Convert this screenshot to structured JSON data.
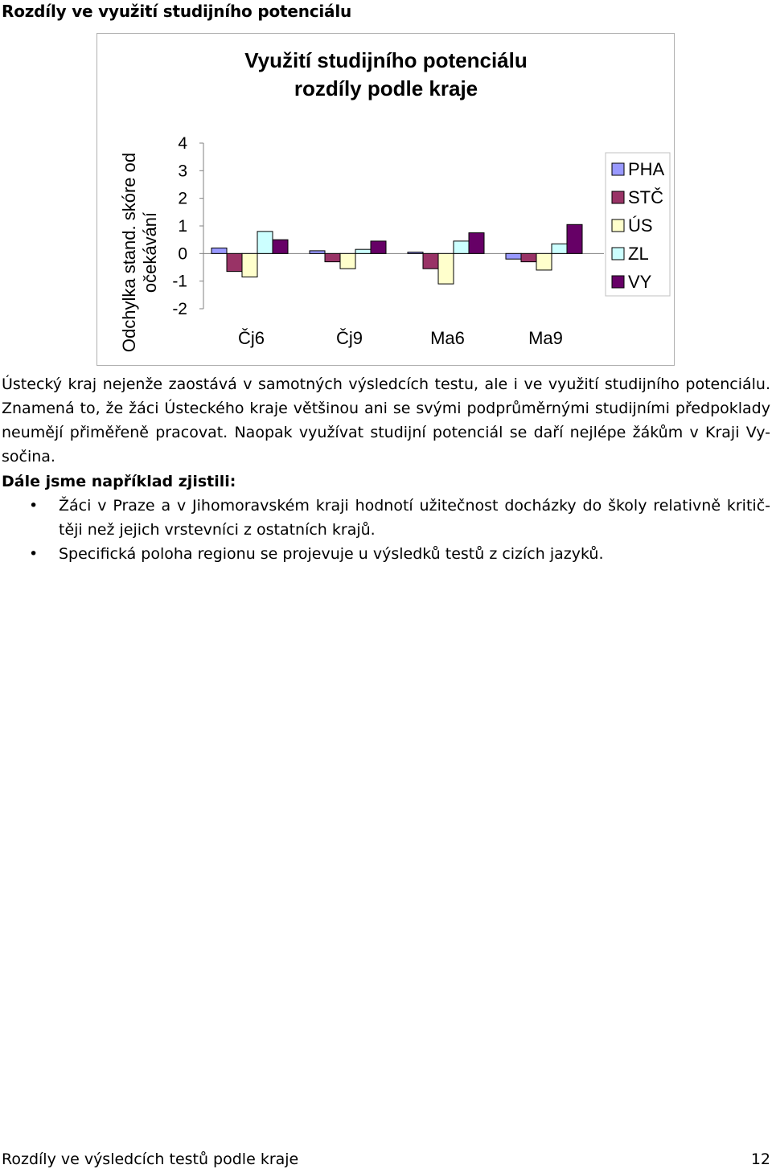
{
  "document": {
    "section_title": "Rozdíly ve využití studijního potenciálu",
    "paragraph_lines": [
      "Ústecký kraj nejenže zaostává v samotných výsledcích testu, ale i ve využití studijního potenciálu.",
      "Znamená to, že žáci Ústeckého kraje většinou ani se svými podprůměrnými studijními předpoklady",
      "neumějí přiměřeně pracovat. Naopak využívat studijní potenciál se daří nejlépe žákům v Kraji Vy-",
      "sočina."
    ],
    "subheading": "Dále jsme například zjistili:",
    "bullets": [
      {
        "lines": [
          "Žáci v Praze a v Jihomoravském kraji hodnotí užitečnost docházky do školy relativně kritič-",
          "těji než jejich vrstevníci z ostatních krajů."
        ]
      },
      {
        "lines": [
          "Specifická poloha regionu se projevuje u výsledků testů z cizích jazyků."
        ]
      }
    ],
    "bullet_symbol": "•",
    "footer": {
      "left": "Rozdíly ve výsledcích testů podle kraje",
      "page_number": "12"
    }
  },
  "chart_data": {
    "type": "bar",
    "title": [
      "Využití studijního potenciálu",
      "rozdíly podle kraje"
    ],
    "ylabel": [
      "Odchylka stand. skóre od",
      "očekávání"
    ],
    "xlabel": "",
    "categories": [
      "Čj6",
      "Čj9",
      "Ma6",
      "Ma9"
    ],
    "ylim": [
      -2,
      4
    ],
    "yticks": [
      "4",
      "3",
      "2",
      "1",
      "0",
      "-1",
      "-2"
    ],
    "ytick_values": [
      4,
      3,
      2,
      1,
      0,
      -1,
      -2
    ],
    "grid": false,
    "legend_position": "right",
    "series": [
      {
        "name": "PHA",
        "color": "#9999ff",
        "values": [
          0.2,
          0.1,
          0.05,
          -0.2
        ]
      },
      {
        "name": "STČ",
        "color": "#993366",
        "values": [
          -0.65,
          -0.3,
          -0.55,
          -0.3
        ]
      },
      {
        "name": "ÚS",
        "color": "#ffffcc",
        "values": [
          -0.85,
          -0.55,
          -1.1,
          -0.6
        ]
      },
      {
        "name": "ZL",
        "color": "#ccffff",
        "values": [
          0.8,
          0.15,
          0.45,
          0.35
        ]
      },
      {
        "name": "VY",
        "color": "#660066",
        "values": [
          0.5,
          0.45,
          0.75,
          1.05
        ]
      }
    ]
  }
}
